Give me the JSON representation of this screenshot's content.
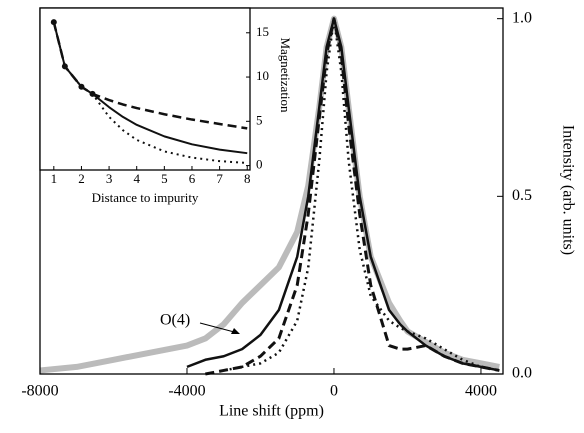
{
  "chart_data": [
    {
      "type": "line",
      "x_label": "Line shift (ppm)",
      "y_label": "Intensity (arb. units)",
      "annotation": "O(4)",
      "x": [
        -8000,
        -7000,
        -6000,
        -5000,
        -4000,
        -3500,
        -3000,
        -2500,
        -2000,
        -1500,
        -1000,
        -700,
        -400,
        -200,
        0,
        200,
        400,
        700,
        1000,
        1500,
        1800,
        2000,
        2500,
        3000,
        3500,
        4000,
        4500
      ],
      "series": [
        {
          "color": "#bbbbbb",
          "width": 6,
          "line_style": "solid",
          "values": [
            0.01,
            0.02,
            0.04,
            0.06,
            0.08,
            0.1,
            0.14,
            0.2,
            0.25,
            0.3,
            0.4,
            0.53,
            0.75,
            0.92,
            1.0,
            0.92,
            0.75,
            0.5,
            0.33,
            0.2,
            0.15,
            0.12,
            0.09,
            0.06,
            0.04,
            0.03,
            0.02
          ]
        },
        {
          "color": "#111111",
          "width": 2.5,
          "line_style": "solid",
          "values": [
            null,
            null,
            null,
            null,
            0.02,
            0.04,
            0.05,
            0.07,
            0.11,
            0.18,
            0.33,
            0.5,
            0.75,
            0.92,
            1.0,
            0.92,
            0.75,
            0.5,
            0.33,
            0.18,
            0.14,
            0.12,
            0.08,
            0.05,
            0.03,
            0.02,
            0.01
          ]
        },
        {
          "color": "#111111",
          "width": 3,
          "line_style": "dashed",
          "values": [
            null,
            null,
            null,
            null,
            null,
            0,
            0.01,
            0.02,
            0.05,
            0.1,
            0.25,
            0.45,
            0.72,
            0.9,
            1.0,
            0.9,
            0.7,
            0.45,
            0.25,
            0.08,
            0.07,
            0.07,
            0.08,
            0.05,
            0.03,
            0.02,
            0.01
          ]
        },
        {
          "color": "#111111",
          "width": 2.5,
          "line_style": "dotted",
          "values": [
            null,
            null,
            null,
            null,
            null,
            null,
            0.01,
            0.02,
            0.03,
            0.06,
            0.15,
            0.3,
            0.6,
            0.85,
            1.0,
            0.85,
            0.6,
            0.35,
            0.22,
            0.15,
            0.13,
            0.12,
            0.1,
            0.07,
            0.04,
            0.02,
            0.01
          ]
        }
      ],
      "xlim": [
        -8000,
        4600
      ],
      "xticks": [
        -8000,
        -4000,
        0,
        4000
      ],
      "ylim": [
        0,
        1.03
      ],
      "yticks": [
        {
          "value": 0,
          "label": "0.0"
        },
        0.5,
        {
          "value": 1,
          "label": "1.0"
        }
      ]
    },
    {
      "type": "line",
      "x_label": "Distance to impurity",
      "y_label": "Magnetization",
      "x": [
        1,
        1.4,
        2,
        2.4,
        3,
        3.5,
        4,
        5,
        6,
        7,
        8
      ],
      "series": [
        {
          "color": "#111111",
          "width": 2,
          "line_style": "solid",
          "values": [
            16.2,
            11.2,
            8.9,
            8.1,
            6.6,
            5.5,
            4.6,
            3.3,
            2.4,
            1.8,
            1.4
          ]
        },
        {
          "color": "#111111",
          "width": 2.5,
          "line_style": "dashed",
          "values": [
            16.2,
            11.2,
            8.9,
            8.1,
            7.4,
            6.9,
            6.5,
            5.8,
            5.2,
            4.7,
            4.2
          ]
        },
        {
          "color": "#111111",
          "width": 2,
          "line_style": "dotted",
          "values": [
            16.2,
            11.2,
            8.9,
            8.1,
            5.5,
            4.0,
            2.9,
            1.6,
            0.9,
            0.5,
            0.3
          ]
        },
        {
          "color": "#111111",
          "width": 0,
          "line_style": "none",
          "markers": true,
          "values": [
            16.2,
            11.2,
            8.9,
            8.1,
            null,
            null,
            null,
            null,
            null,
            null,
            null
          ]
        }
      ],
      "xlim": [
        0.5,
        8.1
      ],
      "xticks": [
        1,
        2,
        3,
        4,
        5,
        6,
        7,
        8
      ],
      "ylim": [
        -0.5,
        17.8
      ],
      "yticks": [
        0,
        5,
        10,
        15
      ]
    }
  ]
}
